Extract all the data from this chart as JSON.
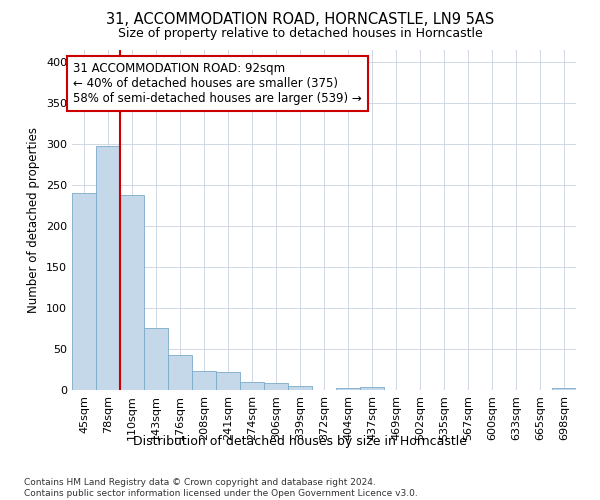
{
  "title1": "31, ACCOMMODATION ROAD, HORNCASTLE, LN9 5AS",
  "title2": "Size of property relative to detached houses in Horncastle",
  "xlabel": "Distribution of detached houses by size in Horncastle",
  "ylabel": "Number of detached properties",
  "bar_labels": [
    "45sqm",
    "78sqm",
    "110sqm",
    "143sqm",
    "176sqm",
    "208sqm",
    "241sqm",
    "274sqm",
    "306sqm",
    "339sqm",
    "372sqm",
    "404sqm",
    "437sqm",
    "469sqm",
    "502sqm",
    "535sqm",
    "567sqm",
    "600sqm",
    "633sqm",
    "665sqm",
    "698sqm"
  ],
  "bar_values": [
    240,
    298,
    238,
    76,
    43,
    23,
    22,
    10,
    8,
    5,
    0,
    2,
    4,
    0,
    0,
    0,
    0,
    0,
    0,
    0,
    2
  ],
  "bar_color": "#c5d8ea",
  "bar_edge_color": "#7aaac8",
  "vline_x": 1.5,
  "vline_color": "#cc0000",
  "annotation_text": "31 ACCOMMODATION ROAD: 92sqm\n← 40% of detached houses are smaller (375)\n58% of semi-detached houses are larger (539) →",
  "annotation_box_color": "#ffffff",
  "annotation_box_edge": "#cc0000",
  "ylim": [
    0,
    415
  ],
  "yticks": [
    0,
    50,
    100,
    150,
    200,
    250,
    300,
    350,
    400
  ],
  "footnote": "Contains HM Land Registry data © Crown copyright and database right 2024.\nContains public sector information licensed under the Open Government Licence v3.0.",
  "bg_color": "#ffffff",
  "grid_color": "#d0d8e4"
}
